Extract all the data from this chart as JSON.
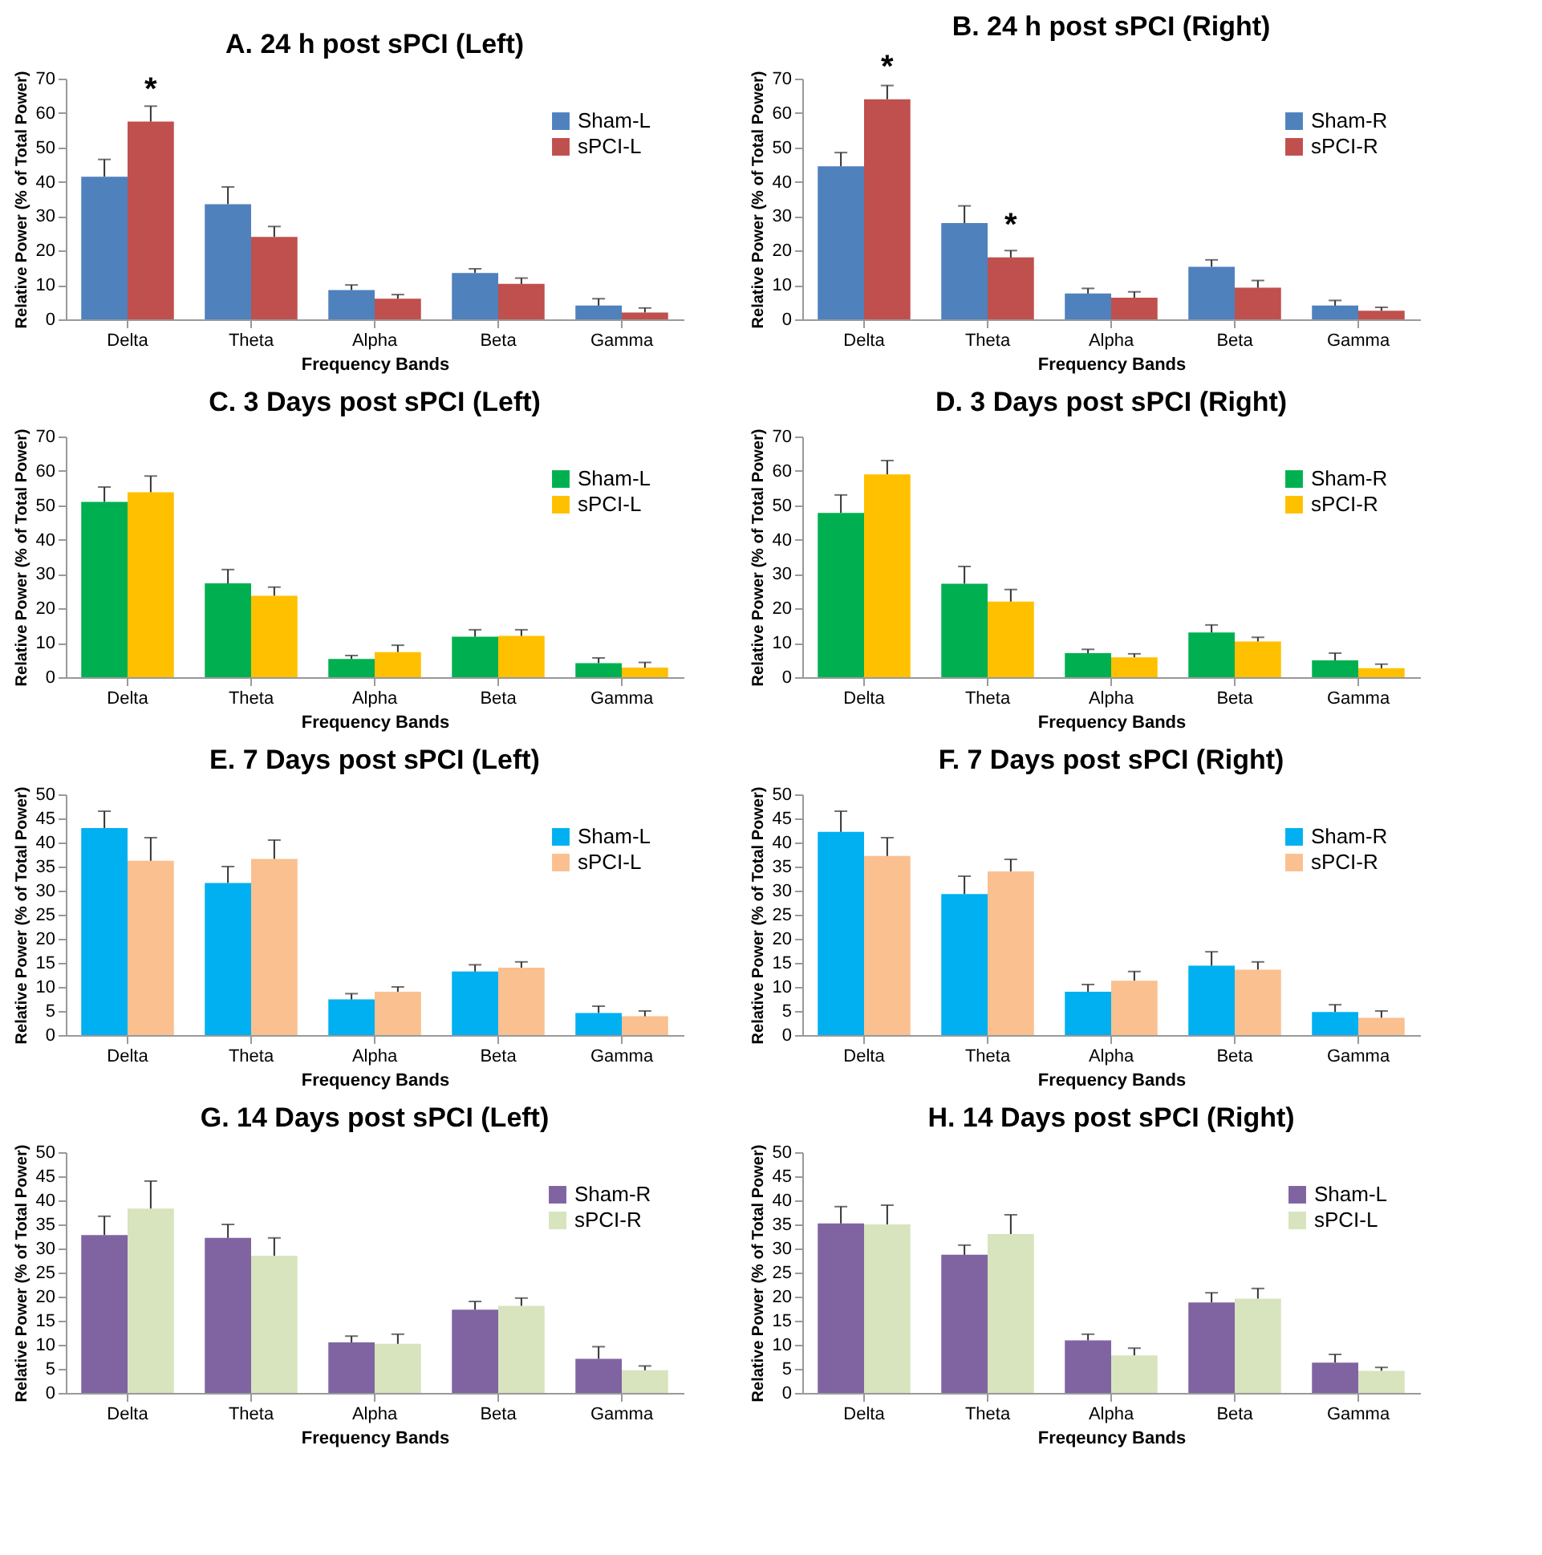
{
  "chart_data": [
    {
      "type": "bar",
      "title": "A. 24 h post sPCI (Left)",
      "xlabel": "Frequency Bands",
      "ylabel": "Relative Power (% of Total Power)",
      "categories": [
        "Delta",
        "Theta",
        "Alpha",
        "Beta",
        "Gamma"
      ],
      "ylim": [
        0,
        70
      ],
      "yticks": [
        0,
        10,
        20,
        30,
        40,
        50,
        60,
        70
      ],
      "grid": false,
      "legend": "top right",
      "series": [
        {
          "name": "Sham-L",
          "color": "#4f81bd",
          "values": [
            41.5,
            33.5,
            8.5,
            13.5,
            4
          ],
          "errors": [
            [
              41.5,
              46.5
            ],
            [
              33.5,
              38.5
            ],
            [
              8.5,
              10
            ],
            [
              13.5,
              14.7
            ],
            [
              4,
              6
            ]
          ]
        },
        {
          "name": "sPCI-L",
          "color": "#c0504d",
          "values": [
            57.5,
            24,
            6,
            10.3,
            2
          ],
          "errors": [
            [
              57.5,
              62
            ],
            [
              24,
              27
            ],
            [
              6,
              7.2
            ],
            [
              10.3,
              12
            ],
            [
              2,
              3.3
            ]
          ]
        }
      ],
      "annotations": [
        {
          "text": "*",
          "x": "Delta",
          "y": 57.5
        }
      ]
    },
    {
      "type": "bar",
      "title": "B. 24 h post sPCI (Right)",
      "xlabel": "Frequency Bands",
      "ylabel": "Relative Power (% of Total Power)",
      "categories": [
        "Delta",
        "Theta",
        "Alpha",
        "Beta",
        "Gamma"
      ],
      "ylim": [
        0,
        70
      ],
      "yticks": [
        0,
        10,
        20,
        30,
        40,
        50,
        60,
        70
      ],
      "grid": false,
      "legend": "top right",
      "series": [
        {
          "name": "Sham-R",
          "color": "#4f81bd",
          "values": [
            44.5,
            28,
            7.5,
            15.3,
            4
          ],
          "errors": [
            [
              44.5,
              48.5
            ],
            [
              28,
              33
            ],
            [
              7.5,
              9
            ],
            [
              15.3,
              17.3
            ],
            [
              4,
              5.5
            ]
          ]
        },
        {
          "name": "sPCI-R",
          "color": "#c0504d",
          "values": [
            64,
            18,
            6.3,
            9.2,
            2.5
          ],
          "errors": [
            [
              64,
              68
            ],
            [
              18,
              20
            ],
            [
              6.3,
              8
            ],
            [
              9.2,
              11.3
            ],
            [
              2.5,
              3.5
            ]
          ]
        }
      ],
      "annotations": [
        {
          "text": "*",
          "x": "Delta",
          "y": 64
        },
        {
          "text": "*",
          "x": "Theta",
          "y": 18
        }
      ]
    },
    {
      "type": "bar",
      "title": "C. 3 Days post sPCI (Left)",
      "xlabel": "Frequency Bands",
      "ylabel": "Relative Power (% of Total Power)",
      "categories": [
        "Delta",
        "Theta",
        "Alpha",
        "Beta",
        "Gamma"
      ],
      "ylim": [
        0,
        70
      ],
      "yticks": [
        0,
        10,
        20,
        30,
        40,
        50,
        60,
        70
      ],
      "grid": false,
      "legend": "top right",
      "series": [
        {
          "name": "Sham-L",
          "color": "#00b050",
          "values": [
            51,
            27.3,
            5.3,
            11.8,
            4.1
          ],
          "errors": [
            [
              51,
              55.3
            ],
            [
              27.3,
              31.3
            ],
            [
              5.3,
              6.3
            ],
            [
              11.8,
              13.8
            ],
            [
              4.1,
              5.6
            ]
          ]
        },
        {
          "name": "sPCI-L",
          "color": "#ffc000",
          "values": [
            53.8,
            23.7,
            7.3,
            12,
            2.8
          ],
          "errors": [
            [
              53.8,
              58.5
            ],
            [
              23.7,
              26.2
            ],
            [
              7.3,
              9.3
            ],
            [
              12,
              13.8
            ],
            [
              2.8,
              4.3
            ]
          ]
        }
      ]
    },
    {
      "type": "bar",
      "title": "D. 3 Days post sPCI (Right)",
      "xlabel": "Frequency Bands",
      "ylabel": "Relative Power (% of Total Power)",
      "categories": [
        "Delta",
        "Theta",
        "Alpha",
        "Beta",
        "Gamma"
      ],
      "ylim": [
        0,
        70
      ],
      "yticks": [
        0,
        10,
        20,
        30,
        40,
        50,
        60,
        70
      ],
      "grid": false,
      "legend": "top right",
      "series": [
        {
          "name": "Sham-R",
          "color": "#00b050",
          "values": [
            47.8,
            27.2,
            7,
            13,
            4.9
          ],
          "errors": [
            [
              47.8,
              53
            ],
            [
              27.2,
              32.2
            ],
            [
              7,
              8.1
            ],
            [
              13,
              15.2
            ],
            [
              4.9,
              7
            ]
          ]
        },
        {
          "name": "sPCI-R",
          "color": "#ffc000",
          "values": [
            59,
            22,
            5.8,
            10.4,
            2.6
          ],
          "errors": [
            [
              59,
              63
            ],
            [
              22,
              25.5
            ],
            [
              5.8,
              6.8
            ],
            [
              10.4,
              11.6
            ],
            [
              2.6,
              3.8
            ]
          ]
        }
      ]
    },
    {
      "type": "bar",
      "title": "E. 7 Days post sPCI (Left)",
      "xlabel": "Frequency Bands",
      "ylabel": "Relative Power (% of Total Power)",
      "categories": [
        "Delta",
        "Theta",
        "Alpha",
        "Beta",
        "Gamma"
      ],
      "ylim": [
        0,
        50
      ],
      "yticks": [
        0,
        5,
        10,
        15,
        20,
        25,
        30,
        35,
        40,
        45,
        50
      ],
      "grid": false,
      "legend": "top right",
      "series": [
        {
          "name": "Sham-L",
          "color": "#00b0f0",
          "values": [
            43,
            31.6,
            7.4,
            13.2,
            4.6
          ],
          "errors": [
            [
              43,
              46.5
            ],
            [
              31.6,
              35
            ],
            [
              7.4,
              8.6
            ],
            [
              13.2,
              14.6
            ],
            [
              4.6,
              6
            ]
          ]
        },
        {
          "name": "sPCI-L",
          "color": "#fac090",
          "values": [
            36.2,
            36.6,
            9,
            14,
            3.9
          ],
          "errors": [
            [
              36.2,
              41
            ],
            [
              36.6,
              40.5
            ],
            [
              9,
              10
            ],
            [
              14,
              15.2
            ],
            [
              3.9,
              5
            ]
          ]
        }
      ]
    },
    {
      "type": "bar",
      "title": "F. 7 Days post sPCI (Right)",
      "xlabel": "Frequency Bands",
      "ylabel": "Relative Power (% of Total Power)",
      "categories": [
        "Delta",
        "Theta",
        "Alpha",
        "Beta",
        "Gamma"
      ],
      "ylim": [
        0,
        50
      ],
      "yticks": [
        0,
        5,
        10,
        15,
        20,
        25,
        30,
        35,
        40,
        45,
        50
      ],
      "grid": false,
      "legend": "top right",
      "series": [
        {
          "name": "Sham-R",
          "color": "#00b0f0",
          "values": [
            42.2,
            29.3,
            9,
            14.4,
            4.8
          ],
          "errors": [
            [
              42.2,
              46.5
            ],
            [
              29.3,
              33
            ],
            [
              9,
              10.5
            ],
            [
              14.4,
              17.3
            ],
            [
              4.8,
              6.3
            ]
          ]
        },
        {
          "name": "sPCI-R",
          "color": "#fac090",
          "values": [
            37.2,
            34,
            11.3,
            13.6,
            3.6
          ],
          "errors": [
            [
              37.2,
              41
            ],
            [
              34,
              36.5
            ],
            [
              11.3,
              13.2
            ],
            [
              13.6,
              15.2
            ],
            [
              3.6,
              5
            ]
          ]
        }
      ]
    },
    {
      "type": "bar",
      "title": "G. 14 Days post sPCI (Left)",
      "xlabel": "Frequency Bands",
      "ylabel": "Relative Power (% of Total Power)",
      "categories": [
        "Delta",
        "Theta",
        "Alpha",
        "Beta",
        "Gamma"
      ],
      "ylim": [
        0,
        50
      ],
      "yticks": [
        0,
        5,
        10,
        15,
        20,
        25,
        30,
        35,
        40,
        45,
        50
      ],
      "grid": false,
      "legend": "top right",
      "series": [
        {
          "name": "Sham-R",
          "color": "#8064a2",
          "values": [
            32.8,
            32.2,
            10.5,
            17.3,
            7.1
          ],
          "errors": [
            [
              32.8,
              36.7
            ],
            [
              32.2,
              35
            ],
            [
              10.5,
              11.8
            ],
            [
              17.3,
              19
            ],
            [
              7.1,
              9.6
            ]
          ]
        },
        {
          "name": "sPCI-R",
          "color": "#d7e4bd",
          "values": [
            38.3,
            28.5,
            10.2,
            18.1,
            4.7
          ],
          "errors": [
            [
              38.3,
              44
            ],
            [
              28.5,
              32.2
            ],
            [
              10.2,
              12.2
            ],
            [
              18.1,
              19.7
            ],
            [
              4.7,
              5.6
            ]
          ]
        }
      ]
    },
    {
      "type": "bar",
      "title": "H. 14 Days post sPCI (Right)",
      "xlabel": "Freqeuncy Bands",
      "ylabel": "Relative Power (% of Total Power)",
      "categories": [
        "Delta",
        "Theta",
        "Alpha",
        "Beta",
        "Gamma"
      ],
      "ylim": [
        0,
        50
      ],
      "yticks": [
        0,
        5,
        10,
        15,
        20,
        25,
        30,
        35,
        40,
        45,
        50
      ],
      "grid": false,
      "legend": "top right",
      "series": [
        {
          "name": "Sham-L",
          "color": "#8064a2",
          "values": [
            35.2,
            28.7,
            10.9,
            18.8,
            6.3
          ],
          "errors": [
            [
              35.2,
              38.7
            ],
            [
              28.7,
              30.7
            ],
            [
              10.9,
              12.2
            ],
            [
              18.8,
              20.8
            ],
            [
              6.3,
              8
            ]
          ]
        },
        {
          "name": "sPCI-L",
          "color": "#d7e4bd",
          "values": [
            35,
            33,
            7.8,
            19.6,
            4.6
          ],
          "errors": [
            [
              35,
              39
            ],
            [
              33,
              37
            ],
            [
              7.8,
              9.3
            ],
            [
              19.6,
              21.7
            ],
            [
              4.6,
              5.3
            ]
          ]
        }
      ]
    }
  ]
}
